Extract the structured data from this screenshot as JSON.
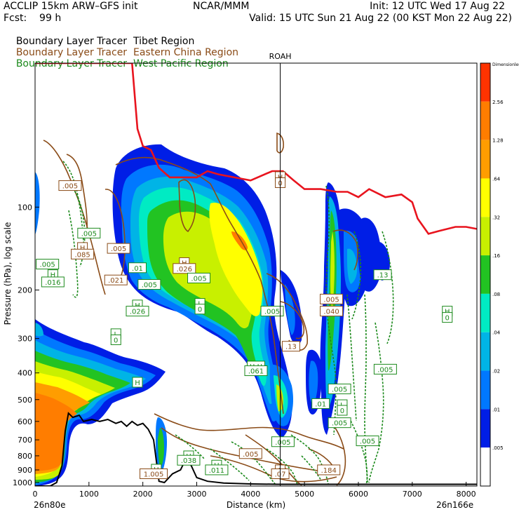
{
  "header": {
    "left_line1": "ACCLIP 15km ARW–GFS init",
    "left_line2": "Fcst:    99 h",
    "center_line1": "NCAR/MMM",
    "right_line1": "Init: 12 UTC Wed 17 Aug 22",
    "right_line2": "Valid: 15 UTC Sun 21 Aug 22 (00 KST Mon 22 Aug 22)"
  },
  "tracers": [
    {
      "label": "Boundary Layer Tracer",
      "region": "Tibet Region",
      "color": "#000000"
    },
    {
      "label": "Boundary Layer Tracer",
      "region": "Eastern China Region",
      "color": "#8a4b17"
    },
    {
      "label": "Boundary Layer Tracer",
      "region": "West Pacific Region",
      "color": "#1c8a1c"
    }
  ],
  "station_label": "ROAH",
  "corner_labels": {
    "left": "26n80e",
    "right": "26n166e"
  },
  "colorbar": {
    "title": "Dimensionless",
    "labels": [
      "2.56",
      "1.28",
      ".64",
      ".32",
      ".16",
      ".08",
      ".04",
      ".02",
      ".01",
      ".005"
    ],
    "colors": [
      "#ff3300",
      "#ff7d00",
      "#ff9d00",
      "#ffff00",
      "#c8f000",
      "#22c322",
      "#00ebc3",
      "#00b4e6",
      "#0078ff",
      "#001ee6",
      "#ffffff"
    ]
  },
  "chart_data": {
    "type": "contour-cross-section",
    "xlabel": "Distance (km)",
    "ylabel": "Pressure (hPa), log scale",
    "xlim": [
      0,
      8200
    ],
    "ylim": [
      1030,
      30
    ],
    "x_ticks": [
      0,
      1000,
      2000,
      3000,
      4000,
      5000,
      6000,
      7000,
      8000
    ],
    "y_ticks": [
      100,
      200,
      300,
      400,
      500,
      600,
      700,
      800,
      900,
      1000
    ],
    "y_scale": "log",
    "station_x_km": 4550,
    "tropopause": [
      [
        0,
        30
      ],
      [
        1800,
        30
      ],
      [
        1900,
        52
      ],
      [
        2000,
        60
      ],
      [
        2150,
        62
      ],
      [
        2300,
        72
      ],
      [
        2500,
        78
      ],
      [
        3000,
        78
      ],
      [
        3200,
        74
      ],
      [
        3400,
        76
      ],
      [
        4000,
        80
      ],
      [
        4400,
        74
      ],
      [
        4600,
        74
      ],
      [
        4800,
        80
      ],
      [
        5000,
        86
      ],
      [
        5300,
        86
      ],
      [
        5600,
        88
      ],
      [
        5800,
        88
      ],
      [
        6000,
        92
      ],
      [
        6200,
        86
      ],
      [
        6500,
        92
      ],
      [
        6800,
        90
      ],
      [
        7000,
        96
      ],
      [
        7100,
        110
      ],
      [
        7300,
        125
      ],
      [
        7500,
        122
      ],
      [
        7800,
        118
      ],
      [
        8000,
        118
      ],
      [
        8200,
        120
      ]
    ],
    "terrain_surface": [
      [
        0,
        1030
      ],
      [
        280,
        1030
      ],
      [
        400,
        1000
      ],
      [
        500,
        870
      ],
      [
        560,
        650
      ],
      [
        620,
        560
      ],
      [
        700,
        580
      ],
      [
        820,
        570
      ],
      [
        900,
        600
      ],
      [
        1050,
        590
      ],
      [
        1200,
        600
      ],
      [
        1350,
        590
      ],
      [
        1500,
        610
      ],
      [
        1600,
        600
      ],
      [
        1700,
        625
      ],
      [
        1800,
        600
      ],
      [
        1900,
        620
      ],
      [
        2000,
        610
      ],
      [
        2100,
        640
      ],
      [
        2200,
        700
      ],
      [
        2300,
        990
      ],
      [
        2400,
        1000
      ],
      [
        2550,
        930
      ],
      [
        2700,
        900
      ],
      [
        2800,
        820
      ],
      [
        2900,
        870
      ],
      [
        3000,
        960
      ],
      [
        3200,
        990
      ],
      [
        3500,
        1005
      ],
      [
        4000,
        1012
      ],
      [
        4500,
        1015
      ],
      [
        5000,
        1015
      ],
      [
        6000,
        1015
      ],
      [
        7000,
        1015
      ],
      [
        8200,
        1015
      ]
    ],
    "levels": [
      0.005,
      0.01,
      0.02,
      0.04,
      0.08,
      0.16,
      0.32,
      0.64,
      1.28,
      2.56
    ],
    "value_labels": [
      {
        "x": 650,
        "p": 84,
        "text": ".005",
        "color": "#8a4b17"
      },
      {
        "x": 1000,
        "p": 125,
        "text": ".005",
        "color": "#1c8a1c"
      },
      {
        "x": 880,
        "p": 141,
        "text": "H",
        "color": "#8a4b17"
      },
      {
        "x": 880,
        "p": 149,
        "text": ".085",
        "color": "#8a4b17"
      },
      {
        "x": 230,
        "p": 162,
        "text": ".005",
        "color": "#1c8a1c"
      },
      {
        "x": 330,
        "p": 177,
        "text": "H",
        "color": "#1c8a1c"
      },
      {
        "x": 330,
        "p": 188,
        "text": ".016",
        "color": "#1c8a1c"
      },
      {
        "x": 1550,
        "p": 142,
        "text": ".005",
        "color": "#8a4b17"
      },
      {
        "x": 1500,
        "p": 185,
        "text": ".021",
        "color": "#8a4b17"
      },
      {
        "x": 1900,
        "p": 167,
        "text": ".01",
        "color": "#1c8a1c"
      },
      {
        "x": 2120,
        "p": 192,
        "text": ".005",
        "color": "#1c8a1c"
      },
      {
        "x": 2770,
        "p": 160,
        "text": "H",
        "color": "#8a4b17"
      },
      {
        "x": 2770,
        "p": 168,
        "text": ".026",
        "color": "#8a4b17"
      },
      {
        "x": 3040,
        "p": 182,
        "text": ".005",
        "color": "#1c8a1c"
      },
      {
        "x": 3060,
        "p": 225,
        "text": "L",
        "color": "#1c8a1c"
      },
      {
        "x": 3060,
        "p": 236,
        "text": "0",
        "color": "#1c8a1c"
      },
      {
        "x": 1500,
        "p": 290,
        "text": "L",
        "color": "#1c8a1c"
      },
      {
        "x": 1500,
        "p": 305,
        "text": "0",
        "color": "#1c8a1c"
      },
      {
        "x": 1900,
        "p": 228,
        "text": "H",
        "color": "#1c8a1c"
      },
      {
        "x": 1900,
        "p": 240,
        "text": ".026",
        "color": "#1c8a1c"
      },
      {
        "x": 4400,
        "p": 240,
        "text": ".005",
        "color": "#1c8a1c"
      },
      {
        "x": 4750,
        "p": 322,
        "text": ".13",
        "color": "#8a4b17"
      },
      {
        "x": 4100,
        "p": 380,
        "text": "H H",
        "color": "#1c8a1c"
      },
      {
        "x": 4100,
        "p": 395,
        "text": ".061",
        "color": "#1c8a1c"
      },
      {
        "x": 1900,
        "p": 435,
        "text": "H",
        "color": "#1c8a1c"
      },
      {
        "x": 5500,
        "p": 217,
        "text": ".005",
        "color": "#8a4b17"
      },
      {
        "x": 5500,
        "p": 240,
        "text": ".040",
        "color": "#8a4b17"
      },
      {
        "x": 6450,
        "p": 177,
        "text": ".13",
        "color": "#1c8a1c"
      },
      {
        "x": 6500,
        "p": 390,
        "text": ".005",
        "color": "#1c8a1c"
      },
      {
        "x": 7650,
        "p": 240,
        "text": "H",
        "color": "#1c8a1c"
      },
      {
        "x": 7650,
        "p": 253,
        "text": "0",
        "color": "#1c8a1c"
      },
      {
        "x": 5650,
        "p": 460,
        "text": ".005",
        "color": "#1c8a1c"
      },
      {
        "x": 5700,
        "p": 525,
        "text": "L",
        "color": "#1c8a1c"
      },
      {
        "x": 5700,
        "p": 550,
        "text": "0",
        "color": "#1c8a1c"
      },
      {
        "x": 5650,
        "p": 610,
        "text": ".005",
        "color": "#1c8a1c"
      },
      {
        "x": 5300,
        "p": 520,
        "text": ".01",
        "color": "#1c8a1c"
      },
      {
        "x": 6170,
        "p": 710,
        "text": ".005",
        "color": "#1c8a1c"
      },
      {
        "x": 4600,
        "p": 715,
        "text": ".005",
        "color": "#1c8a1c"
      },
      {
        "x": 4000,
        "p": 790,
        "text": ".005",
        "color": "#8a4b17"
      },
      {
        "x": 2850,
        "p": 805,
        "text": "H",
        "color": "#1c8a1c"
      },
      {
        "x": 2850,
        "p": 835,
        "text": ".038",
        "color": "#1c8a1c"
      },
      {
        "x": 3370,
        "p": 870,
        "text": "H",
        "color": "#1c8a1c"
      },
      {
        "x": 3370,
        "p": 905,
        "text": ".011",
        "color": "#1c8a1c"
      },
      {
        "x": 2250,
        "p": 900,
        "text": "H",
        "color": "#1c8a1c"
      },
      {
        "x": 2200,
        "p": 935,
        "text": "1.005",
        "color": "#8a4b17"
      },
      {
        "x": 5450,
        "p": 905,
        "text": ".184",
        "color": "#8a4b17"
      },
      {
        "x": 4550,
        "p": 905,
        "text": "L",
        "color": "#8a4b17"
      },
      {
        "x": 4550,
        "p": 935,
        "text": ".07",
        "color": "#8a4b17"
      },
      {
        "x": 4550,
        "p": 78,
        "text": "H",
        "color": "#8a4b17"
      },
      {
        "x": 4550,
        "p": 82,
        "text": "0",
        "color": "#8a4b17"
      }
    ]
  }
}
